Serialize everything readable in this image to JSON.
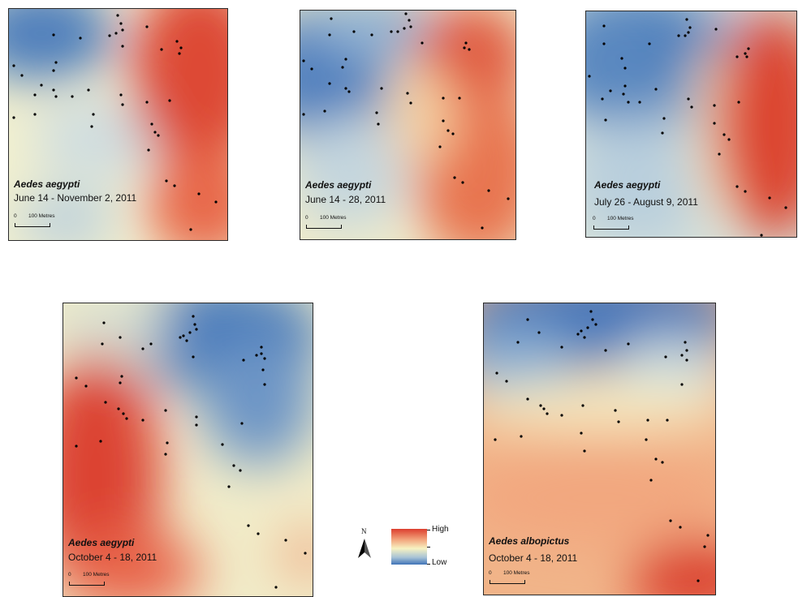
{
  "colors": {
    "high": "#dc3e2e",
    "mid": "#f7f2c2",
    "low": "#3f74b7"
  },
  "panels": [
    {
      "species": "Aedes aegypti",
      "dates": "June 14 - November 2, 2011",
      "scale": {
        "zero": "0",
        "distance": "100 Metres"
      }
    },
    {
      "species": "Aedes aegypti",
      "dates": "June 14 - 28, 2011",
      "scale": {
        "zero": "0",
        "distance": "100 Metres"
      }
    },
    {
      "species": "Aedes aegypti",
      "dates": "July 26 - August 9, 2011",
      "scale": {
        "zero": "0",
        "distance": "100 Metres"
      }
    },
    {
      "species": "Aedes aegypti",
      "dates": "October 4 - 18, 2011",
      "scale": {
        "zero": "0",
        "distance": "100 Metres"
      }
    },
    {
      "species": "Aedes albopictus",
      "dates": "October 4 - 18, 2011",
      "scale": {
        "zero": "0",
        "distance": "100 Metres"
      }
    }
  ],
  "north_arrow": {
    "label": "N",
    "icon": "north-arrow-icon"
  },
  "legend": {
    "high": "High",
    "low": "Low"
  }
}
